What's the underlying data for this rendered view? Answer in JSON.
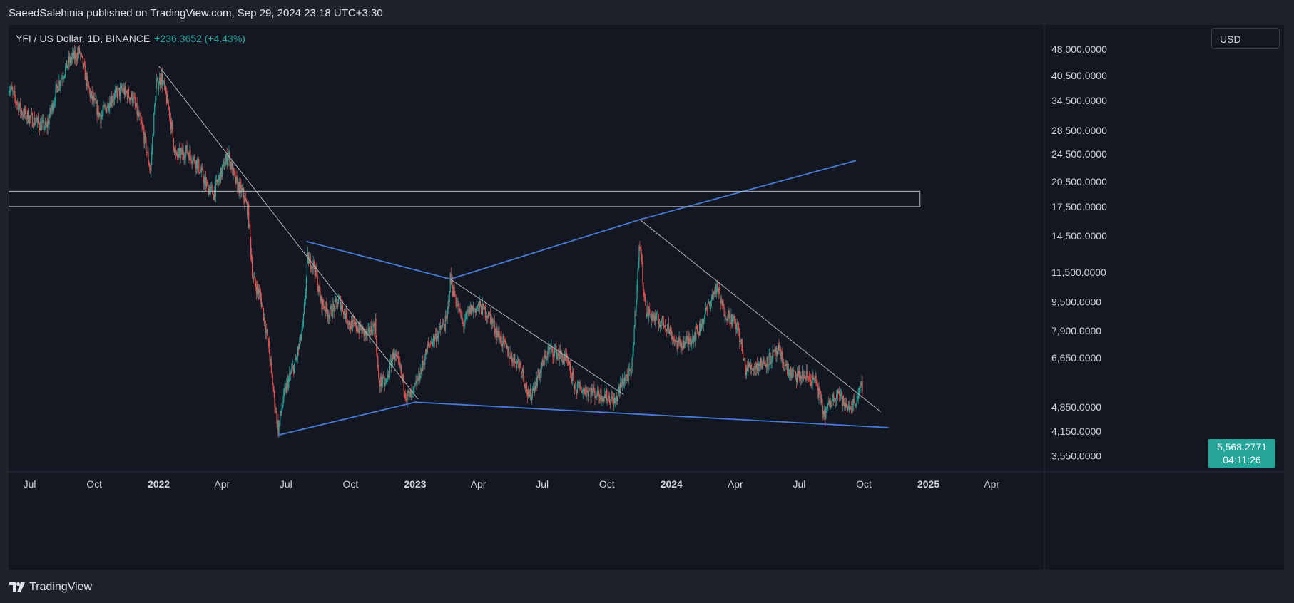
{
  "header": {
    "publish_text": "SaeedSalehinia published on TradingView.com, Sep 29, 2024 23:18 UTC+3:30"
  },
  "legend": {
    "symbol": "YFI / US Dollar, 1D, BINANCE",
    "change": "+236.3652 (+4.43%)"
  },
  "currency": "USD",
  "price_tag": {
    "price": "5,568.2771",
    "countdown": "04:11:26"
  },
  "footer": {
    "logo_text": "TradingView"
  },
  "colors": {
    "background": "#131722",
    "up": "#26a69a",
    "down": "#ef5350",
    "trendline_blue": "#4a7bd5",
    "trendline_gray": "#b2b5be",
    "axis_text": "#d1d4dc"
  },
  "chart_data": {
    "type": "candlestick",
    "scale": "log",
    "ylim": [
      3200,
      56000
    ],
    "xlim": [
      "2021-06-01",
      "2025-06-15"
    ],
    "y_ticks": [
      {
        "value": 48000,
        "label": "48,000.0000"
      },
      {
        "value": 40500,
        "label": "40,500.0000"
      },
      {
        "value": 34500,
        "label": "34,500.0000"
      },
      {
        "value": 28500,
        "label": "28,500.0000"
      },
      {
        "value": 24500,
        "label": "24,500.0000"
      },
      {
        "value": 20500,
        "label": "20,500.0000"
      },
      {
        "value": 17500,
        "label": "17,500.0000"
      },
      {
        "value": 14500,
        "label": "14,500.0000"
      },
      {
        "value": 11500,
        "label": "11,500.0000"
      },
      {
        "value": 9500,
        "label": "9,500.0000"
      },
      {
        "value": 7900,
        "label": "7,900.0000"
      },
      {
        "value": 6650,
        "label": "6,650.0000"
      },
      {
        "value": 4850,
        "label": "4,850.0000"
      },
      {
        "value": 4150,
        "label": "4,150.0000"
      },
      {
        "value": 3550,
        "label": "3,550.0000"
      }
    ],
    "x_ticks": [
      {
        "date": "2021-07-01",
        "label": "Jul",
        "bold": false
      },
      {
        "date": "2021-10-01",
        "label": "Oct",
        "bold": false
      },
      {
        "date": "2022-01-01",
        "label": "2022",
        "bold": true
      },
      {
        "date": "2022-04-01",
        "label": "Apr",
        "bold": false
      },
      {
        "date": "2022-07-01",
        "label": "Jul",
        "bold": false
      },
      {
        "date": "2022-10-01",
        "label": "Oct",
        "bold": false
      },
      {
        "date": "2023-01-01",
        "label": "2023",
        "bold": true
      },
      {
        "date": "2023-04-01",
        "label": "Apr",
        "bold": false
      },
      {
        "date": "2023-07-01",
        "label": "Jul",
        "bold": false
      },
      {
        "date": "2023-10-01",
        "label": "Oct",
        "bold": false
      },
      {
        "date": "2024-01-01",
        "label": "2024",
        "bold": true
      },
      {
        "date": "2024-04-01",
        "label": "Apr",
        "bold": false
      },
      {
        "date": "2024-07-01",
        "label": "Jul",
        "bold": false
      },
      {
        "date": "2024-10-01",
        "label": "Oct",
        "bold": false
      },
      {
        "date": "2025-01-01",
        "label": "2025",
        "bold": true
      },
      {
        "date": "2025-04-01",
        "label": "Apr",
        "bold": false
      }
    ],
    "price_path": [
      [
        "2021-06-01",
        38000
      ],
      [
        "2021-06-20",
        32000
      ],
      [
        "2021-07-10",
        30000
      ],
      [
        "2021-07-25",
        29000
      ],
      [
        "2021-08-10",
        38000
      ],
      [
        "2021-08-25",
        44000
      ],
      [
        "2021-09-10",
        47000
      ],
      [
        "2021-09-25",
        36000
      ],
      [
        "2021-10-10",
        31000
      ],
      [
        "2021-10-25",
        35000
      ],
      [
        "2021-11-10",
        37000
      ],
      [
        "2021-11-25",
        35000
      ],
      [
        "2021-12-10",
        28000
      ],
      [
        "2021-12-20",
        22000
      ],
      [
        "2021-12-28",
        38000
      ],
      [
        "2022-01-05",
        40000
      ],
      [
        "2022-01-15",
        33000
      ],
      [
        "2022-01-25",
        24000
      ],
      [
        "2022-02-10",
        25000
      ],
      [
        "2022-02-25",
        23000
      ],
      [
        "2022-03-10",
        20000
      ],
      [
        "2022-03-20",
        19000
      ],
      [
        "2022-04-01",
        22000
      ],
      [
        "2022-04-10",
        24500
      ],
      [
        "2022-04-20",
        20500
      ],
      [
        "2022-05-01",
        19000
      ],
      [
        "2022-05-08",
        17000
      ],
      [
        "2022-05-15",
        11000
      ],
      [
        "2022-05-25",
        10000
      ],
      [
        "2022-06-05",
        7500
      ],
      [
        "2022-06-15",
        5000
      ],
      [
        "2022-06-20",
        4200
      ],
      [
        "2022-06-28",
        5200
      ],
      [
        "2022-07-05",
        5800
      ],
      [
        "2022-07-15",
        6500
      ],
      [
        "2022-07-25",
        8000
      ],
      [
        "2022-08-01",
        12500
      ],
      [
        "2022-08-10",
        12000
      ],
      [
        "2022-08-20",
        9500
      ],
      [
        "2022-09-01",
        8800
      ],
      [
        "2022-09-15",
        9600
      ],
      [
        "2022-10-01",
        8200
      ],
      [
        "2022-10-15",
        8000
      ],
      [
        "2022-10-25",
        7600
      ],
      [
        "2022-11-05",
        8300
      ],
      [
        "2022-11-10",
        5700
      ],
      [
        "2022-11-20",
        5600
      ],
      [
        "2022-12-01",
        6800
      ],
      [
        "2022-12-10",
        6200
      ],
      [
        "2022-12-20",
        5200
      ],
      [
        "2022-12-28",
        5200
      ],
      [
        "2023-01-10",
        6200
      ],
      [
        "2023-01-20",
        7200
      ],
      [
        "2023-02-01",
        7700
      ],
      [
        "2023-02-15",
        8400
      ],
      [
        "2023-02-20",
        11000
      ],
      [
        "2023-03-01",
        9500
      ],
      [
        "2023-03-10",
        8200
      ],
      [
        "2023-03-20",
        9000
      ],
      [
        "2023-04-01",
        9200
      ],
      [
        "2023-04-15",
        8800
      ],
      [
        "2023-05-01",
        7600
      ],
      [
        "2023-05-15",
        6800
      ],
      [
        "2023-06-01",
        6300
      ],
      [
        "2023-06-12",
        5100
      ],
      [
        "2023-06-25",
        5900
      ],
      [
        "2023-07-10",
        7000
      ],
      [
        "2023-07-20",
        6900
      ],
      [
        "2023-08-05",
        6500
      ],
      [
        "2023-08-17",
        5500
      ],
      [
        "2023-09-01",
        5400
      ],
      [
        "2023-09-15",
        5300
      ],
      [
        "2023-10-01",
        5200
      ],
      [
        "2023-10-12",
        5000
      ],
      [
        "2023-10-25",
        5800
      ],
      [
        "2023-11-05",
        6000
      ],
      [
        "2023-11-12",
        10000
      ],
      [
        "2023-11-17",
        14000
      ],
      [
        "2023-11-25",
        9000
      ],
      [
        "2023-12-10",
        8500
      ],
      [
        "2023-12-25",
        8200
      ],
      [
        "2024-01-10",
        7200
      ],
      [
        "2024-01-25",
        7400
      ],
      [
        "2024-02-10",
        8000
      ],
      [
        "2024-02-25",
        9500
      ],
      [
        "2024-03-05",
        10500
      ],
      [
        "2024-03-15",
        9000
      ],
      [
        "2024-03-25",
        8600
      ],
      [
        "2024-04-05",
        8000
      ],
      [
        "2024-04-15",
        6200
      ],
      [
        "2024-05-01",
        6300
      ],
      [
        "2024-05-15",
        6500
      ],
      [
        "2024-06-01",
        6900
      ],
      [
        "2024-06-15",
        6100
      ],
      [
        "2024-06-25",
        5900
      ],
      [
        "2024-07-10",
        5900
      ],
      [
        "2024-07-25",
        5700
      ],
      [
        "2024-08-05",
        4600
      ],
      [
        "2024-08-15",
        5000
      ],
      [
        "2024-08-25",
        5400
      ],
      [
        "2024-09-05",
        4800
      ],
      [
        "2024-09-15",
        4900
      ],
      [
        "2024-09-25",
        5300
      ],
      [
        "2024-09-29",
        5568
      ]
    ],
    "drawings": [
      {
        "kind": "segment",
        "color": "blue",
        "points": [
          [
            "2022-06-20",
            4050
          ],
          [
            "2023-01-01",
            5000
          ]
        ]
      },
      {
        "kind": "segment",
        "color": "blue",
        "points": [
          [
            "2023-01-01",
            5000
          ],
          [
            "2024-11-05",
            4250
          ]
        ]
      },
      {
        "kind": "segment",
        "color": "blue",
        "points": [
          [
            "2022-07-30",
            14000
          ],
          [
            "2023-02-20",
            11000
          ]
        ]
      },
      {
        "kind": "segment",
        "color": "blue",
        "points": [
          [
            "2023-02-20",
            11000
          ],
          [
            "2023-11-17",
            16100
          ]
        ]
      },
      {
        "kind": "segment",
        "color": "blue",
        "points": [
          [
            "2023-11-17",
            16100
          ],
          [
            "2024-09-20",
            23500
          ]
        ]
      },
      {
        "kind": "segment",
        "color": "gray",
        "points": [
          [
            "2022-01-01",
            43000
          ],
          [
            "2023-01-05",
            5100
          ]
        ]
      },
      {
        "kind": "segment",
        "color": "gray",
        "points": [
          [
            "2023-02-20",
            11000
          ],
          [
            "2023-10-25",
            5250
          ]
        ]
      },
      {
        "kind": "segment",
        "color": "gray",
        "points": [
          [
            "2023-11-17",
            16100
          ],
          [
            "2024-10-25",
            4700
          ]
        ]
      },
      {
        "kind": "rectangle",
        "color": "gray",
        "points": [
          [
            "2021-06-01",
            19300
          ],
          [
            "2024-12-20",
            17500
          ]
        ]
      }
    ]
  }
}
